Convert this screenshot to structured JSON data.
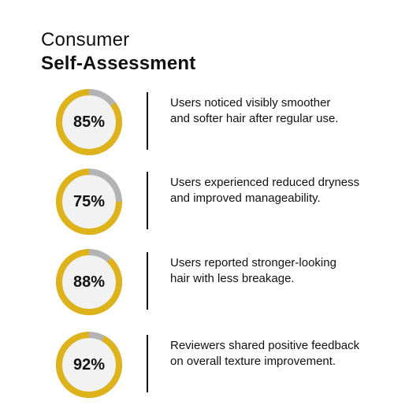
{
  "title": {
    "line1": "Consumer",
    "line2": "Self-Assessment"
  },
  "colors": {
    "ring_fill": "#DDB21A",
    "ring_track": "#B3B3B3",
    "ring_inner": "#F2F2F2",
    "text": "#111111"
  },
  "chart_data": {
    "type": "pie",
    "title": "Consumer Self-Assessment",
    "categories": [
      "Users noticed visibly smoother and softer hair after regular use.",
      "Users experienced reduced dryness and improved manageability.",
      "Users reported stronger-looking hair with less breakage.",
      "Reviewers shared positive feedback on overall texture improvement."
    ],
    "values": [
      85,
      75,
      88,
      92
    ],
    "max": 100,
    "unit": "%"
  },
  "stats": [
    {
      "value": 85,
      "label": "85%",
      "desc_line1": "Users noticed visibly smoother",
      "desc_line2": "and softer hair after regular use."
    },
    {
      "value": 75,
      "label": "75%",
      "desc_line1": "Users experienced reduced dryness",
      "desc_line2": "and improved manageability."
    },
    {
      "value": 88,
      "label": "88%",
      "desc_line1": "Users reported stronger-looking",
      "desc_line2": "hair with less breakage."
    },
    {
      "value": 92,
      "label": "92%",
      "desc_line1": "Reviewers shared positive feedback",
      "desc_line2": "on overall texture improvement."
    }
  ]
}
